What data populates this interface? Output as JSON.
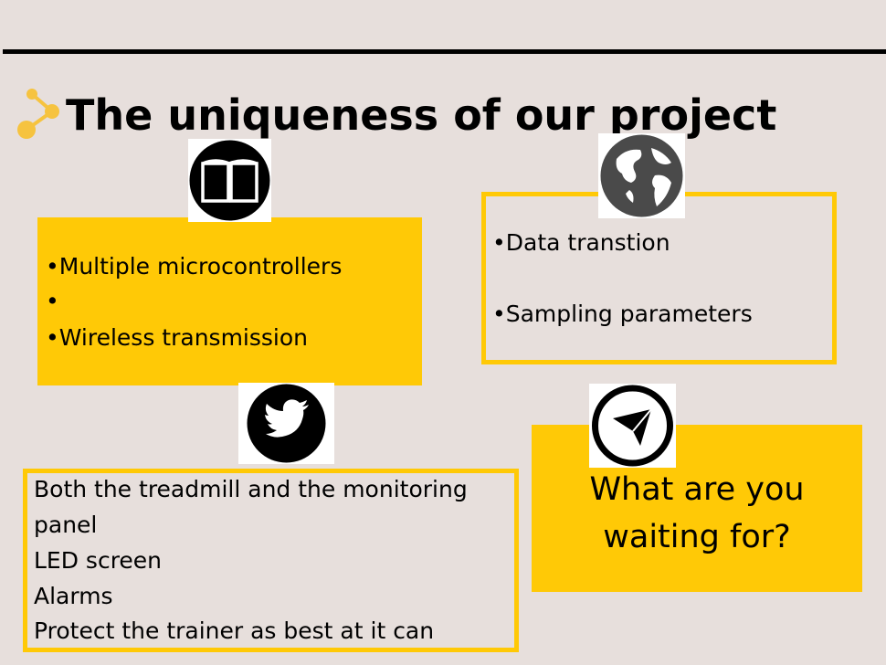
{
  "slide": {
    "title": "The uniqueness of our project",
    "title_icon": "connector-node-icon",
    "accent_color": "#ffc906",
    "background_color": "#e7dfdc"
  },
  "box1": {
    "icon": "book-icon",
    "items": [
      "•Multiple microcontrollers",
      "•",
      "•Wireless transmission"
    ]
  },
  "box2": {
    "icon": "globe-icon",
    "items": [
      "•Data transtion",
      "•Sampling parameters"
    ]
  },
  "box3": {
    "icon": "twitter-bird-icon",
    "items": [
      "Both the treadmill and the monitoring",
      "panel",
      "LED screen",
      "Alarms",
      "Protect the trainer as best at it can"
    ]
  },
  "box4": {
    "icon": "paper-plane-icon",
    "lines": [
      "What are you",
      "waiting for?"
    ]
  }
}
